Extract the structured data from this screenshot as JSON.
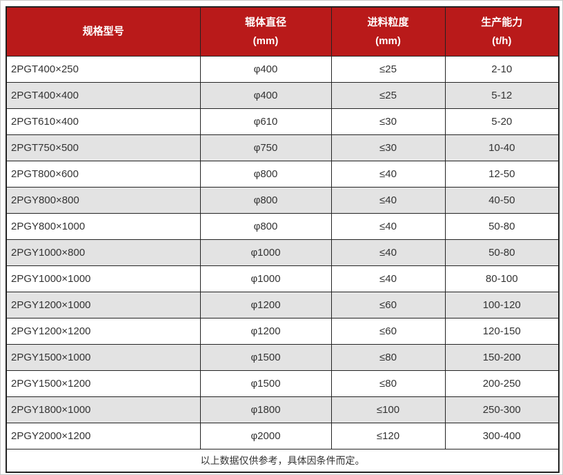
{
  "colors": {
    "header_bg": "#b91a1a",
    "header_text": "#ffffff",
    "row_alt_bg": "#e3e3e3",
    "border": "#222222",
    "text": "#333333"
  },
  "table": {
    "type": "table",
    "columns": [
      {
        "line1": "规格型号",
        "line2": ""
      },
      {
        "line1": "辊体直径",
        "line2": "(mm)"
      },
      {
        "line1": "进料粒度",
        "line2": "(mm)"
      },
      {
        "line1": "生产能力",
        "line2": "(t/h)"
      }
    ],
    "rows": [
      [
        "2PGT400×250",
        "φ400",
        "≤25",
        "2-10"
      ],
      [
        "2PGT400×400",
        "φ400",
        "≤25",
        "5-12"
      ],
      [
        "2PGT610×400",
        "φ610",
        "≤30",
        "5-20"
      ],
      [
        "2PGT750×500",
        "φ750",
        "≤30",
        "10-40"
      ],
      [
        "2PGT800×600",
        "φ800",
        "≤40",
        "12-50"
      ],
      [
        "2PGY800×800",
        "φ800",
        "≤40",
        "40-50"
      ],
      [
        "2PGY800×1000",
        "φ800",
        "≤40",
        "50-80"
      ],
      [
        "2PGY1000×800",
        "φ1000",
        "≤40",
        "50-80"
      ],
      [
        "2PGY1000×1000",
        "φ1000",
        "≤40",
        "80-100"
      ],
      [
        "2PGY1200×1000",
        "φ1200",
        "≤60",
        "100-120"
      ],
      [
        "2PGY1200×1200",
        "φ1200",
        "≤60",
        "120-150"
      ],
      [
        "2PGY1500×1000",
        "φ1500",
        "≤80",
        "150-200"
      ],
      [
        "2PGY1500×1200",
        "φ1500",
        "≤80",
        "200-250"
      ],
      [
        "2PGY1800×1000",
        "φ1800",
        "≤100",
        "250-300"
      ],
      [
        "2PGY2000×1200",
        "φ2000",
        "≤120",
        "300-400"
      ]
    ],
    "footer_note": "以上数据仅供参考，具体因条件而定。"
  }
}
